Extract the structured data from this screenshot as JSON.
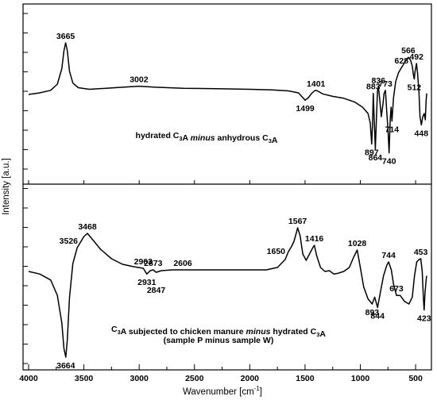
{
  "chart_data": {
    "type": "line",
    "xlabel": "Wavenumber [cm",
    "xlabel_sup": "-1",
    "xlabel_close": "]",
    "ylabel": "Intensity [a.u.]",
    "xlim": [
      4000,
      400
    ],
    "x_reversed": true,
    "x_ticks": [
      4000,
      3500,
      3000,
      2500,
      2000,
      1500,
      1000,
      500
    ],
    "grid": false,
    "panels": [
      {
        "caption_parts": [
          {
            "t": "hydrated C",
            "s": "normal"
          },
          {
            "t": "3",
            "s": "sub"
          },
          {
            "t": "A ",
            "s": "normal"
          },
          {
            "t": "minus",
            "s": "italic"
          },
          {
            "t": " anhydrous C",
            "s": "normal"
          },
          {
            "t": "3",
            "s": "sub"
          },
          {
            "t": "A",
            "s": "normal"
          }
        ],
        "caption_line2": "",
        "series": [
          {
            "x": 4000,
            "y": 0.0
          },
          {
            "x": 3900,
            "y": 0.03
          },
          {
            "x": 3800,
            "y": 0.08
          },
          {
            "x": 3740,
            "y": 0.2
          },
          {
            "x": 3700,
            "y": 0.5
          },
          {
            "x": 3680,
            "y": 0.85
          },
          {
            "x": 3665,
            "y": 1.0
          },
          {
            "x": 3650,
            "y": 0.85
          },
          {
            "x": 3630,
            "y": 0.45
          },
          {
            "x": 3600,
            "y": 0.22
          },
          {
            "x": 3550,
            "y": 0.13
          },
          {
            "x": 3450,
            "y": 0.1
          },
          {
            "x": 3300,
            "y": 0.12
          },
          {
            "x": 3150,
            "y": 0.14
          },
          {
            "x": 3002,
            "y": 0.16
          },
          {
            "x": 2850,
            "y": 0.14
          },
          {
            "x": 2600,
            "y": 0.12
          },
          {
            "x": 2300,
            "y": 0.11
          },
          {
            "x": 2000,
            "y": 0.1
          },
          {
            "x": 1800,
            "y": 0.09
          },
          {
            "x": 1650,
            "y": 0.07
          },
          {
            "x": 1560,
            "y": 0.03
          },
          {
            "x": 1520,
            "y": -0.05
          },
          {
            "x": 1499,
            "y": -0.09
          },
          {
            "x": 1470,
            "y": -0.05
          },
          {
            "x": 1440,
            "y": 0.02
          },
          {
            "x": 1415,
            "y": 0.07
          },
          {
            "x": 1401,
            "y": 0.08
          },
          {
            "x": 1380,
            "y": 0.06
          },
          {
            "x": 1340,
            "y": 0.01
          },
          {
            "x": 1250,
            "y": -0.03
          },
          {
            "x": 1150,
            "y": -0.06
          },
          {
            "x": 1050,
            "y": -0.12
          },
          {
            "x": 980,
            "y": -0.2
          },
          {
            "x": 930,
            "y": -0.3
          },
          {
            "x": 910,
            "y": -0.45
          },
          {
            "x": 897,
            "y": -0.78
          },
          {
            "x": 890,
            "y": -0.48
          },
          {
            "x": 883,
            "y": 0.02
          },
          {
            "x": 874,
            "y": -0.4
          },
          {
            "x": 864,
            "y": -0.86
          },
          {
            "x": 855,
            "y": -0.4
          },
          {
            "x": 845,
            "y": 0.07
          },
          {
            "x": 836,
            "y": 0.14
          },
          {
            "x": 826,
            "y": -0.05
          },
          {
            "x": 810,
            "y": -0.35
          },
          {
            "x": 795,
            "y": -0.15
          },
          {
            "x": 785,
            "y": 0.02
          },
          {
            "x": 773,
            "y": 0.08
          },
          {
            "x": 760,
            "y": -0.3
          },
          {
            "x": 750,
            "y": -0.55
          },
          {
            "x": 740,
            "y": -0.92
          },
          {
            "x": 730,
            "y": -0.4
          },
          {
            "x": 722,
            "y": -0.2
          },
          {
            "x": 714,
            "y": -0.42
          },
          {
            "x": 700,
            "y": -0.05
          },
          {
            "x": 680,
            "y": 0.25
          },
          {
            "x": 655,
            "y": 0.42
          },
          {
            "x": 628,
            "y": 0.52
          },
          {
            "x": 600,
            "y": 0.62
          },
          {
            "x": 566,
            "y": 0.72
          },
          {
            "x": 545,
            "y": 0.66
          },
          {
            "x": 530,
            "y": 0.55
          },
          {
            "x": 520,
            "y": 0.38
          },
          {
            "x": 512,
            "y": 0.3
          },
          {
            "x": 505,
            "y": 0.45
          },
          {
            "x": 492,
            "y": 0.6
          },
          {
            "x": 482,
            "y": 0.4
          },
          {
            "x": 470,
            "y": 0.05
          },
          {
            "x": 460,
            "y": -0.35
          },
          {
            "x": 448,
            "y": -0.48
          },
          {
            "x": 435,
            "y": -0.35
          },
          {
            "x": 422,
            "y": -0.3
          },
          {
            "x": 412,
            "y": -0.4
          },
          {
            "x": 405,
            "y": -0.1
          },
          {
            "x": 400,
            "y": 0.02
          }
        ],
        "annotations": [
          {
            "label": "3665",
            "x": 3665,
            "y": 1.0,
            "pos": "above"
          },
          {
            "label": "3002",
            "x": 3002,
            "y": 0.16,
            "pos": "above"
          },
          {
            "label": "1499",
            "x": 1499,
            "y": -0.09,
            "pos": "below"
          },
          {
            "label": "1401",
            "x": 1401,
            "y": 0.08,
            "pos": "above"
          },
          {
            "label": "883",
            "x": 883,
            "y": 0.02,
            "pos": "above"
          },
          {
            "label": "836",
            "x": 836,
            "y": 0.14,
            "pos": "above"
          },
          {
            "label": "773",
            "x": 773,
            "y": 0.08,
            "pos": "above"
          },
          {
            "label": "628",
            "x": 628,
            "y": 0.52,
            "pos": "above"
          },
          {
            "label": "566",
            "x": 566,
            "y": 0.72,
            "pos": "above"
          },
          {
            "label": "492",
            "x": 492,
            "y": 0.6,
            "pos": "above"
          },
          {
            "label": "512",
            "x": 512,
            "y": 0.3,
            "pos": "below"
          },
          {
            "label": "448",
            "x": 448,
            "y": -0.48,
            "pos": "below"
          },
          {
            "label": "714",
            "x": 714,
            "y": -0.42,
            "pos": "below"
          },
          {
            "label": "897",
            "x": 897,
            "y": -0.78,
            "pos": "below"
          },
          {
            "label": "864",
            "x": 864,
            "y": -0.86,
            "pos": "below"
          },
          {
            "label": "740",
            "x": 740,
            "y": -0.92,
            "pos": "below"
          }
        ]
      },
      {
        "caption_parts": [
          {
            "t": "C",
            "s": "normal"
          },
          {
            "t": "3",
            "s": "sub"
          },
          {
            "t": "A subjected to chicken manure ",
            "s": "normal"
          },
          {
            "t": "minus",
            "s": "italic"
          },
          {
            "t": " hydrated C",
            "s": "normal"
          },
          {
            "t": "3",
            "s": "sub"
          },
          {
            "t": "A",
            "s": "normal"
          }
        ],
        "caption_line2": "(sample P minus sample W)",
        "series": [
          {
            "x": 4000,
            "y": 0.0
          },
          {
            "x": 3900,
            "y": -0.03
          },
          {
            "x": 3800,
            "y": -0.1
          },
          {
            "x": 3740,
            "y": -0.28
          },
          {
            "x": 3700,
            "y": -0.6
          },
          {
            "x": 3680,
            "y": -0.9
          },
          {
            "x": 3664,
            "y": -1.0
          },
          {
            "x": 3650,
            "y": -0.8
          },
          {
            "x": 3630,
            "y": -0.3
          },
          {
            "x": 3600,
            "y": 0.1
          },
          {
            "x": 3560,
            "y": 0.3
          },
          {
            "x": 3526,
            "y": 0.38
          },
          {
            "x": 3500,
            "y": 0.44
          },
          {
            "x": 3468,
            "y": 0.48
          },
          {
            "x": 3420,
            "y": 0.4
          },
          {
            "x": 3350,
            "y": 0.28
          },
          {
            "x": 3250,
            "y": 0.16
          },
          {
            "x": 3150,
            "y": 0.09
          },
          {
            "x": 3050,
            "y": 0.06
          },
          {
            "x": 2963,
            "y": 0.04
          },
          {
            "x": 2931,
            "y": -0.03
          },
          {
            "x": 2900,
            "y": 0.01
          },
          {
            "x": 2873,
            "y": 0.02
          },
          {
            "x": 2847,
            "y": -0.01
          },
          {
            "x": 2800,
            "y": 0.01
          },
          {
            "x": 2700,
            "y": 0.02
          },
          {
            "x": 2606,
            "y": 0.02
          },
          {
            "x": 2400,
            "y": 0.02
          },
          {
            "x": 2200,
            "y": 0.02
          },
          {
            "x": 2000,
            "y": 0.02
          },
          {
            "x": 1850,
            "y": 0.02
          },
          {
            "x": 1750,
            "y": 0.05
          },
          {
            "x": 1680,
            "y": 0.15
          },
          {
            "x": 1650,
            "y": 0.25
          },
          {
            "x": 1620,
            "y": 0.32
          },
          {
            "x": 1600,
            "y": 0.38
          },
          {
            "x": 1580,
            "y": 0.48
          },
          {
            "x": 1567,
            "y": 0.55
          },
          {
            "x": 1545,
            "y": 0.45
          },
          {
            "x": 1520,
            "y": 0.22
          },
          {
            "x": 1490,
            "y": 0.14
          },
          {
            "x": 1460,
            "y": 0.22
          },
          {
            "x": 1430,
            "y": 0.3
          },
          {
            "x": 1416,
            "y": 0.33
          },
          {
            "x": 1395,
            "y": 0.2
          },
          {
            "x": 1360,
            "y": 0.05
          },
          {
            "x": 1320,
            "y": 0.0
          },
          {
            "x": 1280,
            "y": 0.01
          },
          {
            "x": 1240,
            "y": -0.03
          },
          {
            "x": 1200,
            "y": -0.02
          },
          {
            "x": 1150,
            "y": 0.0
          },
          {
            "x": 1100,
            "y": 0.05
          },
          {
            "x": 1060,
            "y": 0.18
          },
          {
            "x": 1028,
            "y": 0.27
          },
          {
            "x": 1000,
            "y": 0.05
          },
          {
            "x": 970,
            "y": -0.18
          },
          {
            "x": 930,
            "y": -0.32
          },
          {
            "x": 893,
            "y": -0.38
          },
          {
            "x": 870,
            "y": -0.3
          },
          {
            "x": 844,
            "y": -0.42
          },
          {
            "x": 820,
            "y": -0.25
          },
          {
            "x": 790,
            "y": -0.05
          },
          {
            "x": 760,
            "y": 0.08
          },
          {
            "x": 744,
            "y": 0.12
          },
          {
            "x": 720,
            "y": 0.02
          },
          {
            "x": 700,
            "y": -0.15
          },
          {
            "x": 673,
            "y": -0.28
          },
          {
            "x": 640,
            "y": -0.28
          },
          {
            "x": 600,
            "y": -0.35
          },
          {
            "x": 560,
            "y": -0.38
          },
          {
            "x": 530,
            "y": -0.3
          },
          {
            "x": 510,
            "y": -0.05
          },
          {
            "x": 490,
            "y": 0.12
          },
          {
            "x": 470,
            "y": 0.15
          },
          {
            "x": 453,
            "y": 0.16
          },
          {
            "x": 440,
            "y": 0.0
          },
          {
            "x": 430,
            "y": -0.3
          },
          {
            "x": 423,
            "y": -0.45
          },
          {
            "x": 415,
            "y": -0.25
          },
          {
            "x": 405,
            "y": -0.1
          },
          {
            "x": 400,
            "y": -0.05
          }
        ],
        "annotations": [
          {
            "label": "3664",
            "x": 3664,
            "y": -1.0,
            "pos": "below"
          },
          {
            "label": "3526",
            "x": 3526,
            "y": 0.38,
            "pos": "left"
          },
          {
            "label": "3468",
            "x": 3468,
            "y": 0.48,
            "pos": "above"
          },
          {
            "label": "2963",
            "x": 2963,
            "y": 0.04,
            "pos": "above"
          },
          {
            "label": "2931",
            "x": 2931,
            "y": -0.03,
            "pos": "below"
          },
          {
            "label": "2873",
            "x": 2873,
            "y": 0.02,
            "pos": "above"
          },
          {
            "label": "2847",
            "x": 2847,
            "y": -0.01,
            "pos": "below2"
          },
          {
            "label": "2606",
            "x": 2606,
            "y": 0.02,
            "pos": "above"
          },
          {
            "label": "1650",
            "x": 1650,
            "y": 0.25,
            "pos": "left"
          },
          {
            "label": "1567",
            "x": 1567,
            "y": 0.55,
            "pos": "above"
          },
          {
            "label": "1416",
            "x": 1416,
            "y": 0.33,
            "pos": "above"
          },
          {
            "label": "1028",
            "x": 1028,
            "y": 0.27,
            "pos": "above"
          },
          {
            "label": "744",
            "x": 744,
            "y": 0.12,
            "pos": "above"
          },
          {
            "label": "453",
            "x": 453,
            "y": 0.16,
            "pos": "above"
          },
          {
            "label": "893",
            "x": 893,
            "y": -0.38,
            "pos": "below"
          },
          {
            "label": "844",
            "x": 844,
            "y": -0.42,
            "pos": "below"
          },
          {
            "label": "673",
            "x": 673,
            "y": -0.28,
            "pos": "above"
          },
          {
            "label": "423",
            "x": 423,
            "y": -0.45,
            "pos": "below"
          }
        ]
      }
    ]
  }
}
